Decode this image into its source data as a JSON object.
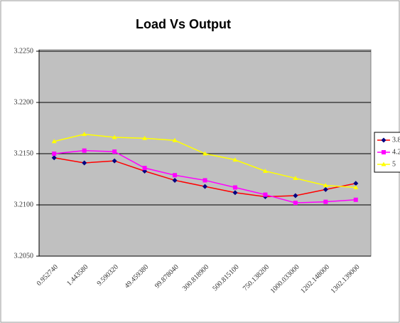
{
  "chart_data": {
    "type": "line",
    "title": "Load Vs Output",
    "categories": [
      "0.952740",
      "1.443580",
      "9.590320",
      "49.459380",
      "99.878040",
      "300.818900",
      "500.815100",
      "750.138200",
      "1000.033000",
      "1202.148000",
      "1302.139000"
    ],
    "series": [
      {
        "name": "3.8",
        "color": "#ff0000",
        "marker_color": "#000080",
        "marker": "diamond",
        "values": [
          3.2146,
          3.2141,
          3.2143,
          3.2133,
          3.2124,
          3.2118,
          3.2112,
          3.2108,
          3.2109,
          3.2115,
          3.2121
        ]
      },
      {
        "name": "4.2",
        "color": "#ff00ff",
        "marker_color": "#ff00ff",
        "marker": "square",
        "values": [
          3.215,
          3.2153,
          3.2152,
          3.2136,
          3.2129,
          3.2124,
          3.2117,
          3.211,
          3.2102,
          3.2103,
          3.2105
        ]
      },
      {
        "name": "5",
        "color": "#ffff00",
        "marker_color": "#ffff00",
        "marker": "triangle",
        "values": [
          3.2162,
          3.2169,
          3.2166,
          3.2165,
          3.2163,
          3.215,
          3.2144,
          3.2133,
          3.2126,
          3.2119,
          3.2117
        ]
      }
    ],
    "ylim": [
      3.205,
      3.225
    ],
    "yticks": [
      {
        "value": 3.205,
        "label": "3.2050"
      },
      {
        "value": 3.21,
        "label": "3.2100"
      },
      {
        "value": 3.215,
        "label": "3.2150"
      },
      {
        "value": 3.22,
        "label": "3.2200"
      },
      {
        "value": 3.225,
        "label": "3.2250"
      }
    ],
    "grid": true,
    "legend": "right",
    "plot_background": "#c0c0c0"
  }
}
